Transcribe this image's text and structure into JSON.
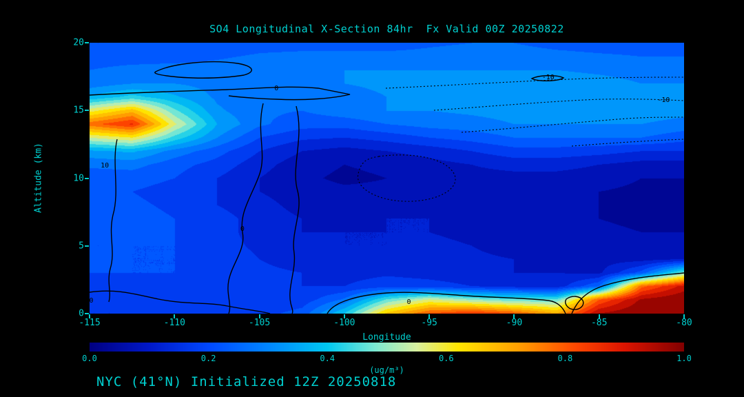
{
  "figure": {
    "background_color": "#000000",
    "accent_text_color": "#00d0d0"
  },
  "chart_data": {
    "type": "heatmap",
    "title": "SO4 Longitudinal X-Section 84hr  Fx Valid 00Z 20250822",
    "footer": "NYC (41°N) Initialized 12Z 20250818",
    "xlabel": "Longitude",
    "ylabel": "Altitude (km)",
    "x_range": [
      -115,
      -80
    ],
    "y_range": [
      0,
      20
    ],
    "x_ticks": [
      "-115",
      "-110",
      "-105",
      "-100",
      "-95",
      "-90",
      "-85",
      "-80"
    ],
    "y_ticks": [
      "0",
      "5",
      "10",
      "15",
      "20"
    ],
    "colorbar": {
      "min": 0.0,
      "max": 1.0,
      "ticks": [
        "0.0",
        "0.2",
        "0.4",
        "0.6",
        "0.8",
        "1.0"
      ],
      "label": "(ug/m³)"
    },
    "colormap_stops": [
      [
        0.0,
        "#000082"
      ],
      [
        0.1,
        "#0018c8"
      ],
      [
        0.2,
        "#0048ff"
      ],
      [
        0.3,
        "#0086ff"
      ],
      [
        0.4,
        "#00c8f0"
      ],
      [
        0.48,
        "#7ce8d2"
      ],
      [
        0.55,
        "#d8f0a0"
      ],
      [
        0.62,
        "#ffe600"
      ],
      [
        0.72,
        "#ffa000"
      ],
      [
        0.82,
        "#ff4600"
      ],
      [
        0.9,
        "#dc1400"
      ],
      [
        1.0,
        "#820000"
      ]
    ],
    "grid": {
      "lon": [
        -115,
        -112.5,
        -110,
        -107.5,
        -105,
        -102.5,
        -100,
        -97.5,
        -95,
        -92.5,
        -90,
        -87.5,
        -85,
        -82.5,
        -80
      ],
      "alt_top_to_bottom": [
        20,
        19,
        18,
        17,
        16,
        15,
        14,
        13,
        12,
        11,
        10,
        9,
        8,
        7,
        6,
        5,
        4,
        3,
        2,
        1,
        0
      ],
      "values_top_to_bottom": [
        [
          0.2,
          0.2,
          0.2,
          0.2,
          0.22,
          0.22,
          0.22,
          0.22,
          0.24,
          0.25,
          0.25,
          0.23,
          0.22,
          0.22,
          0.22
        ],
        [
          0.22,
          0.22,
          0.22,
          0.24,
          0.26,
          0.27,
          0.27,
          0.27,
          0.27,
          0.28,
          0.28,
          0.27,
          0.26,
          0.25,
          0.25
        ],
        [
          0.25,
          0.27,
          0.28,
          0.28,
          0.3,
          0.3,
          0.3,
          0.3,
          0.3,
          0.3,
          0.3,
          0.3,
          0.29,
          0.28,
          0.28
        ],
        [
          0.27,
          0.3,
          0.3,
          0.28,
          0.28,
          0.28,
          0.3,
          0.31,
          0.32,
          0.32,
          0.33,
          0.33,
          0.32,
          0.3,
          0.3
        ],
        [
          0.36,
          0.42,
          0.36,
          0.29,
          0.26,
          0.26,
          0.28,
          0.3,
          0.32,
          0.33,
          0.33,
          0.33,
          0.33,
          0.32,
          0.32
        ],
        [
          0.58,
          0.68,
          0.46,
          0.31,
          0.26,
          0.25,
          0.28,
          0.3,
          0.3,
          0.31,
          0.32,
          0.33,
          0.33,
          0.33,
          0.32
        ],
        [
          0.78,
          0.86,
          0.56,
          0.35,
          0.26,
          0.22,
          0.22,
          0.25,
          0.27,
          0.28,
          0.3,
          0.3,
          0.3,
          0.3,
          0.28
        ],
        [
          0.55,
          0.6,
          0.43,
          0.3,
          0.2,
          0.16,
          0.15,
          0.17,
          0.2,
          0.22,
          0.25,
          0.25,
          0.25,
          0.25,
          0.22
        ],
        [
          0.34,
          0.36,
          0.28,
          0.22,
          0.15,
          0.1,
          0.08,
          0.1,
          0.12,
          0.15,
          0.18,
          0.18,
          0.17,
          0.15,
          0.15
        ],
        [
          0.26,
          0.27,
          0.22,
          0.18,
          0.12,
          0.07,
          0.05,
          0.06,
          0.08,
          0.1,
          0.12,
          0.12,
          0.1,
          0.08,
          0.08
        ],
        [
          0.22,
          0.22,
          0.2,
          0.15,
          0.1,
          0.06,
          0.04,
          0.05,
          0.07,
          0.08,
          0.08,
          0.08,
          0.07,
          0.05,
          0.05
        ],
        [
          0.2,
          0.2,
          0.18,
          0.15,
          0.1,
          0.07,
          0.06,
          0.06,
          0.08,
          0.08,
          0.07,
          0.06,
          0.05,
          0.04,
          0.04
        ],
        [
          0.2,
          0.21,
          0.19,
          0.15,
          0.12,
          0.08,
          0.07,
          0.08,
          0.1,
          0.08,
          0.07,
          0.06,
          0.05,
          0.04,
          0.04
        ],
        [
          0.2,
          0.22,
          0.2,
          0.17,
          0.13,
          0.1,
          0.08,
          0.1,
          0.1,
          0.08,
          0.07,
          0.06,
          0.05,
          0.04,
          0.04
        ],
        [
          0.2,
          0.22,
          0.2,
          0.17,
          0.13,
          0.1,
          0.1,
          0.1,
          0.1,
          0.09,
          0.08,
          0.07,
          0.06,
          0.05,
          0.05
        ],
        [
          0.2,
          0.2,
          0.2,
          0.17,
          0.14,
          0.12,
          0.1,
          0.1,
          0.11,
          0.1,
          0.08,
          0.08,
          0.07,
          0.06,
          0.06
        ],
        [
          0.22,
          0.2,
          0.2,
          0.18,
          0.15,
          0.13,
          0.12,
          0.12,
          0.12,
          0.11,
          0.1,
          0.08,
          0.08,
          0.08,
          0.1
        ],
        [
          0.2,
          0.2,
          0.2,
          0.18,
          0.16,
          0.15,
          0.13,
          0.14,
          0.13,
          0.12,
          0.1,
          0.1,
          0.09,
          0.22,
          0.48
        ],
        [
          0.18,
          0.18,
          0.18,
          0.18,
          0.16,
          0.15,
          0.15,
          0.18,
          0.17,
          0.15,
          0.13,
          0.12,
          0.25,
          0.78,
          0.92
        ],
        [
          0.17,
          0.17,
          0.17,
          0.17,
          0.15,
          0.17,
          0.26,
          0.46,
          0.56,
          0.5,
          0.46,
          0.46,
          0.8,
          0.96,
          1.0
        ],
        [
          0.15,
          0.15,
          0.16,
          0.17,
          0.18,
          0.22,
          0.4,
          0.66,
          0.8,
          0.85,
          0.8,
          0.7,
          0.95,
          1.0,
          1.0
        ]
      ]
    },
    "contour_labels": [
      {
        "text": "0",
        "lon": -104.0,
        "alt": 16.6
      },
      {
        "text": "-10",
        "lon": -88.0,
        "alt": 17.4
      },
      {
        "text": "-10",
        "lon": -81.2,
        "alt": 15.7
      },
      {
        "text": "10",
        "lon": -114.1,
        "alt": 10.9
      },
      {
        "text": "0",
        "lon": -106.0,
        "alt": 6.2
      },
      {
        "text": "0",
        "lon": -114.9,
        "alt": 0.9
      },
      {
        "text": "0",
        "lon": -96.2,
        "alt": 0.8
      }
    ]
  }
}
